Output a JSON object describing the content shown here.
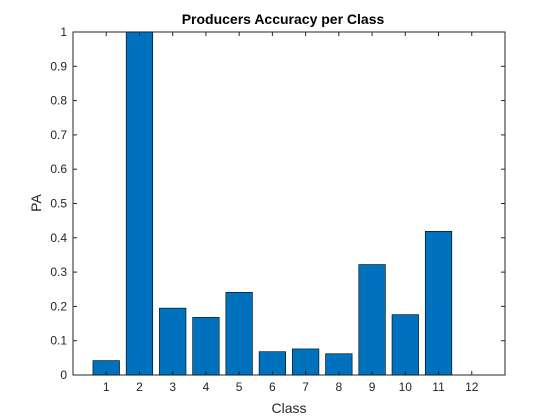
{
  "chart_data": {
    "type": "bar",
    "title": "Producers Accuracy per Class",
    "xlabel": "Class",
    "ylabel": "PA",
    "categories": [
      "1",
      "2",
      "3",
      "4",
      "5",
      "6",
      "7",
      "8",
      "9",
      "10",
      "11",
      "12"
    ],
    "values": [
      0.042,
      1.0,
      0.195,
      0.168,
      0.241,
      0.068,
      0.076,
      0.062,
      0.322,
      0.176,
      0.419,
      0
    ],
    "ylim": [
      0,
      1
    ],
    "yticks": [
      "0",
      "0.1",
      "0.2",
      "0.3",
      "0.4",
      "0.5",
      "0.6",
      "0.7",
      "0.8",
      "0.9",
      "1"
    ],
    "grid": false,
    "legend": "none",
    "colors": {
      "bar": "#0072BD",
      "bar_edge": "#000000",
      "axis": "#262626"
    }
  }
}
